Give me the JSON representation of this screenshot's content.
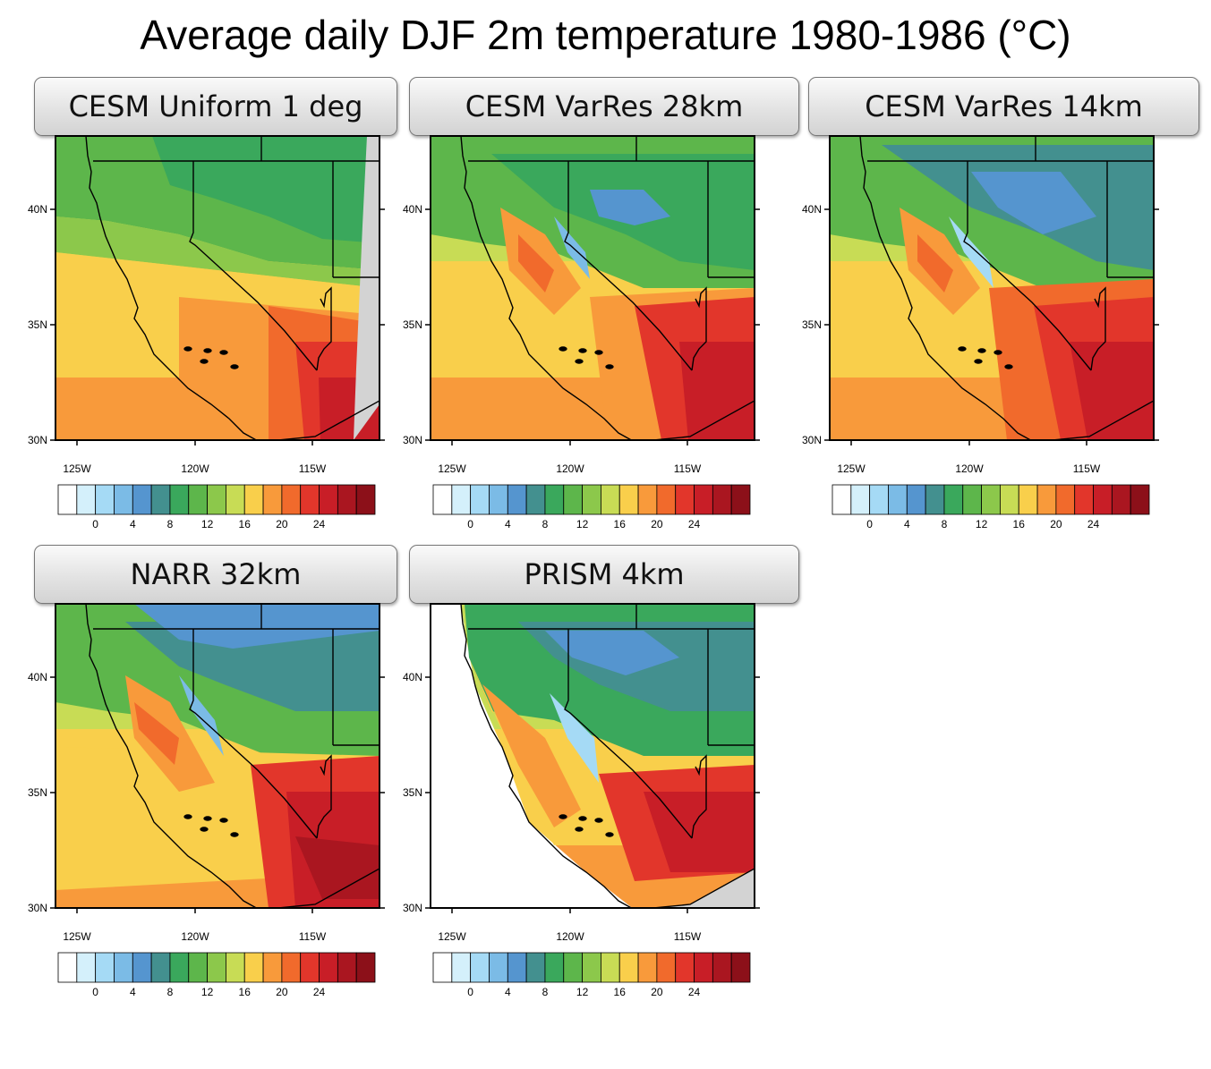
{
  "title": "Average daily DJF 2m temperature 1980-1986 (°C)",
  "axes": {
    "lat_labels": [
      "40N",
      "35N",
      "30N"
    ],
    "lon_labels": [
      "125W",
      "120W",
      "115W"
    ]
  },
  "colorbar": {
    "tick_labels": [
      "0",
      "4",
      "8",
      "12",
      "16",
      "20",
      "24"
    ],
    "colors": [
      "#ffffff",
      "#d4f0fb",
      "#a5daf5",
      "#7bbbe6",
      "#5595cf",
      "#43908f",
      "#3aa85c",
      "#5db64b",
      "#8cc84b",
      "#c8dc55",
      "#f9cf4b",
      "#f89a3b",
      "#f16a2c",
      "#e2362b",
      "#c81e27",
      "#aa1620",
      "#8c1019"
    ]
  },
  "panels": [
    {
      "title": "CESM Uniform 1 deg",
      "resolution": "coarse"
    },
    {
      "title": "CESM VarRes 28km",
      "resolution": "medium"
    },
    {
      "title": "CESM VarRes 14km",
      "resolution": "fine"
    },
    {
      "title": "NARR 32km",
      "resolution": "medium"
    },
    {
      "title": "PRISM 4km",
      "resolution": "finest"
    }
  ]
}
